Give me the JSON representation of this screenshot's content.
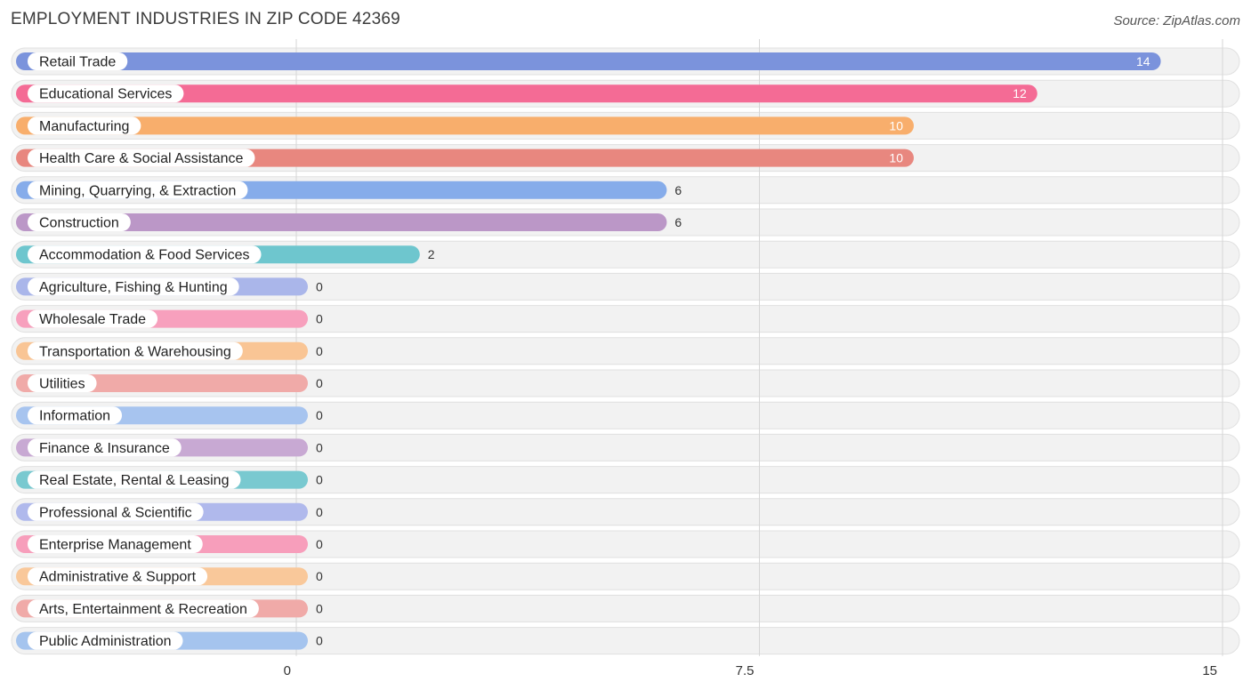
{
  "title": "EMPLOYMENT INDUSTRIES IN ZIP CODE 42369",
  "source": "Source: ZipAtlas.com",
  "chart_data": {
    "type": "bar",
    "orientation": "horizontal",
    "xlim": [
      0,
      15
    ],
    "ticks": [
      {
        "value": 0,
        "label": "0"
      },
      {
        "value": 7.5,
        "label": "7.5"
      },
      {
        "value": 15,
        "label": "15"
      }
    ],
    "grid": true,
    "categories": [
      "Retail Trade",
      "Educational Services",
      "Manufacturing",
      "Health Care & Social Assistance",
      "Mining, Quarrying, & Extraction",
      "Construction",
      "Accommodation & Food Services",
      "Agriculture, Fishing & Hunting",
      "Wholesale Trade",
      "Transportation & Warehousing",
      "Utilities",
      "Information",
      "Finance & Insurance",
      "Real Estate, Rental & Leasing",
      "Professional & Scientific",
      "Enterprise Management",
      "Administrative & Support",
      "Arts, Entertainment & Recreation",
      "Public Administration"
    ],
    "values": [
      14,
      12,
      10,
      10,
      6,
      6,
      2,
      0,
      0,
      0,
      0,
      0,
      0,
      0,
      0,
      0,
      0,
      0,
      0
    ],
    "colors": [
      "#7b93dc",
      "#f46b95",
      "#f8ae6c",
      "#e8877f",
      "#86acea",
      "#bb97c7",
      "#6ec6ce",
      "#aab6ea",
      "#f7a0bd",
      "#f9c595",
      "#f0aaa8",
      "#a7c4ef",
      "#c8a9d3",
      "#79c9d0",
      "#b0b9ec",
      "#f79ebb",
      "#f9c89a",
      "#f0aaa8",
      "#a5c4ee"
    ]
  }
}
